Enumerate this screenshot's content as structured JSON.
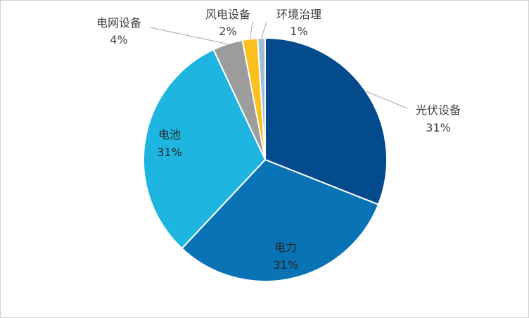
{
  "chart_data": {
    "type": "pie",
    "start_angle_deg": 0,
    "direction": "clockwise",
    "slices": [
      {
        "label": "光伏设备",
        "value": 31,
        "value_label": "31%",
        "color": "#034b8c"
      },
      {
        "label": "电力",
        "value": 31,
        "value_label": "31%",
        "color": "#0a73b6"
      },
      {
        "label": "电池",
        "value": 31,
        "value_label": "31%",
        "color": "#1eb6e0"
      },
      {
        "label": "电网设备",
        "value": 4,
        "value_label": "4%",
        "color": "#9c9c9c"
      },
      {
        "label": "风电设备",
        "value": 2,
        "value_label": "2%",
        "color": "#fbc01e"
      },
      {
        "label": "环境治理",
        "value": 1,
        "value_label": "1%",
        "color": "#9fbfd9"
      }
    ]
  }
}
